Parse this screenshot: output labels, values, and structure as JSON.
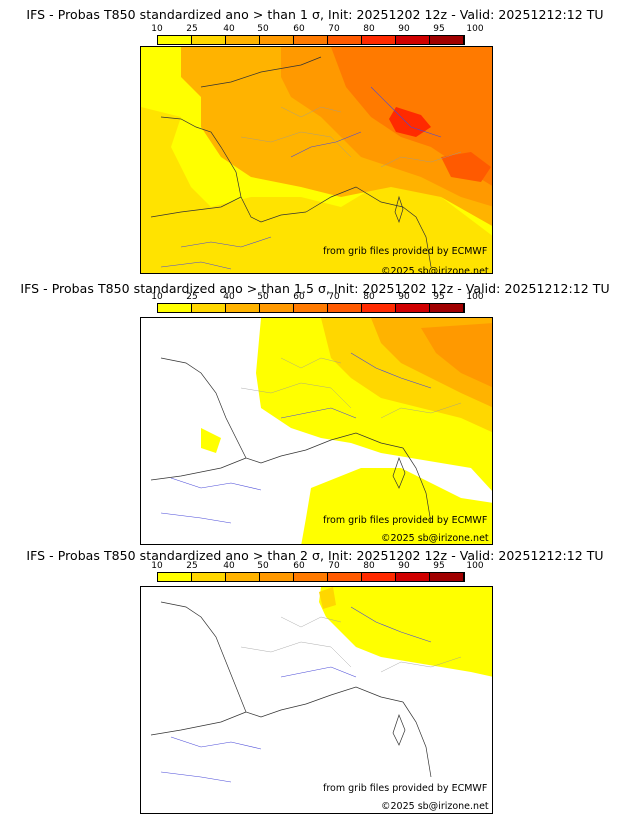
{
  "colorbar": {
    "ticks": [
      "10",
      "25",
      "40",
      "50",
      "60",
      "70",
      "80",
      "90",
      "95",
      "100"
    ],
    "colors": [
      "#ffff00",
      "#ffd700",
      "#ffb300",
      "#ff9900",
      "#ff7a00",
      "#ff5a00",
      "#ff2a00",
      "#d00000",
      "#a00000",
      "#6b0000"
    ]
  },
  "panels": [
    {
      "title": "IFS - Probas T850  standardized ano > than 1 σ, Init: 20251202 12z - Valid: 20251212:12 TU",
      "credit_source": "from grib files provided by ECMWF",
      "credit_copyright": "©2025 sb@irizone.net"
    },
    {
      "title": "IFS - Probas T850  standardized ano > than 1.5 σ, Init: 20251202 12z - Valid: 20251212:12 TU",
      "credit_source": "from grib files provided by ECMWF",
      "credit_copyright": "©2025 sb@irizone.net"
    },
    {
      "title": "IFS - Probas T850  standardized ano > than 2 σ, Init: 20251202 12z - Valid: 20251212:12 TU",
      "credit_source": "from grib files provided by ECMWF",
      "credit_copyright": "©2025 sb@irizone.net"
    }
  ]
}
